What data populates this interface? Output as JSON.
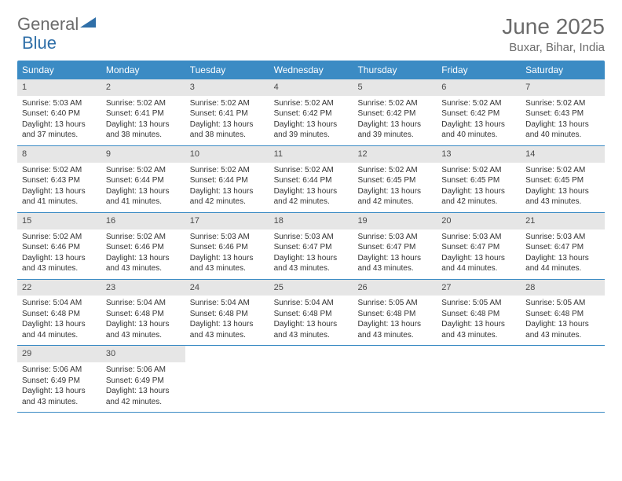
{
  "logo": {
    "text1": "General",
    "text2": "Blue"
  },
  "title": "June 2025",
  "location": "Buxar, Bihar, India",
  "colors": {
    "header_bg": "#3b8bc4",
    "header_text": "#ffffff",
    "daynum_bg": "#e6e6e6",
    "text": "#333333",
    "title_color": "#6b6b6b",
    "row_border": "#3b8bc4"
  },
  "weekdays": [
    "Sunday",
    "Monday",
    "Tuesday",
    "Wednesday",
    "Thursday",
    "Friday",
    "Saturday"
  ],
  "weeks": [
    [
      {
        "n": "1",
        "sr": "Sunrise: 5:03 AM",
        "ss": "Sunset: 6:40 PM",
        "d1": "Daylight: 13 hours",
        "d2": "and 37 minutes."
      },
      {
        "n": "2",
        "sr": "Sunrise: 5:02 AM",
        "ss": "Sunset: 6:41 PM",
        "d1": "Daylight: 13 hours",
        "d2": "and 38 minutes."
      },
      {
        "n": "3",
        "sr": "Sunrise: 5:02 AM",
        "ss": "Sunset: 6:41 PM",
        "d1": "Daylight: 13 hours",
        "d2": "and 38 minutes."
      },
      {
        "n": "4",
        "sr": "Sunrise: 5:02 AM",
        "ss": "Sunset: 6:42 PM",
        "d1": "Daylight: 13 hours",
        "d2": "and 39 minutes."
      },
      {
        "n": "5",
        "sr": "Sunrise: 5:02 AM",
        "ss": "Sunset: 6:42 PM",
        "d1": "Daylight: 13 hours",
        "d2": "and 39 minutes."
      },
      {
        "n": "6",
        "sr": "Sunrise: 5:02 AM",
        "ss": "Sunset: 6:42 PM",
        "d1": "Daylight: 13 hours",
        "d2": "and 40 minutes."
      },
      {
        "n": "7",
        "sr": "Sunrise: 5:02 AM",
        "ss": "Sunset: 6:43 PM",
        "d1": "Daylight: 13 hours",
        "d2": "and 40 minutes."
      }
    ],
    [
      {
        "n": "8",
        "sr": "Sunrise: 5:02 AM",
        "ss": "Sunset: 6:43 PM",
        "d1": "Daylight: 13 hours",
        "d2": "and 41 minutes."
      },
      {
        "n": "9",
        "sr": "Sunrise: 5:02 AM",
        "ss": "Sunset: 6:44 PM",
        "d1": "Daylight: 13 hours",
        "d2": "and 41 minutes."
      },
      {
        "n": "10",
        "sr": "Sunrise: 5:02 AM",
        "ss": "Sunset: 6:44 PM",
        "d1": "Daylight: 13 hours",
        "d2": "and 42 minutes."
      },
      {
        "n": "11",
        "sr": "Sunrise: 5:02 AM",
        "ss": "Sunset: 6:44 PM",
        "d1": "Daylight: 13 hours",
        "d2": "and 42 minutes."
      },
      {
        "n": "12",
        "sr": "Sunrise: 5:02 AM",
        "ss": "Sunset: 6:45 PM",
        "d1": "Daylight: 13 hours",
        "d2": "and 42 minutes."
      },
      {
        "n": "13",
        "sr": "Sunrise: 5:02 AM",
        "ss": "Sunset: 6:45 PM",
        "d1": "Daylight: 13 hours",
        "d2": "and 42 minutes."
      },
      {
        "n": "14",
        "sr": "Sunrise: 5:02 AM",
        "ss": "Sunset: 6:45 PM",
        "d1": "Daylight: 13 hours",
        "d2": "and 43 minutes."
      }
    ],
    [
      {
        "n": "15",
        "sr": "Sunrise: 5:02 AM",
        "ss": "Sunset: 6:46 PM",
        "d1": "Daylight: 13 hours",
        "d2": "and 43 minutes."
      },
      {
        "n": "16",
        "sr": "Sunrise: 5:02 AM",
        "ss": "Sunset: 6:46 PM",
        "d1": "Daylight: 13 hours",
        "d2": "and 43 minutes."
      },
      {
        "n": "17",
        "sr": "Sunrise: 5:03 AM",
        "ss": "Sunset: 6:46 PM",
        "d1": "Daylight: 13 hours",
        "d2": "and 43 minutes."
      },
      {
        "n": "18",
        "sr": "Sunrise: 5:03 AM",
        "ss": "Sunset: 6:47 PM",
        "d1": "Daylight: 13 hours",
        "d2": "and 43 minutes."
      },
      {
        "n": "19",
        "sr": "Sunrise: 5:03 AM",
        "ss": "Sunset: 6:47 PM",
        "d1": "Daylight: 13 hours",
        "d2": "and 43 minutes."
      },
      {
        "n": "20",
        "sr": "Sunrise: 5:03 AM",
        "ss": "Sunset: 6:47 PM",
        "d1": "Daylight: 13 hours",
        "d2": "and 44 minutes."
      },
      {
        "n": "21",
        "sr": "Sunrise: 5:03 AM",
        "ss": "Sunset: 6:47 PM",
        "d1": "Daylight: 13 hours",
        "d2": "and 44 minutes."
      }
    ],
    [
      {
        "n": "22",
        "sr": "Sunrise: 5:04 AM",
        "ss": "Sunset: 6:48 PM",
        "d1": "Daylight: 13 hours",
        "d2": "and 44 minutes."
      },
      {
        "n": "23",
        "sr": "Sunrise: 5:04 AM",
        "ss": "Sunset: 6:48 PM",
        "d1": "Daylight: 13 hours",
        "d2": "and 43 minutes."
      },
      {
        "n": "24",
        "sr": "Sunrise: 5:04 AM",
        "ss": "Sunset: 6:48 PM",
        "d1": "Daylight: 13 hours",
        "d2": "and 43 minutes."
      },
      {
        "n": "25",
        "sr": "Sunrise: 5:04 AM",
        "ss": "Sunset: 6:48 PM",
        "d1": "Daylight: 13 hours",
        "d2": "and 43 minutes."
      },
      {
        "n": "26",
        "sr": "Sunrise: 5:05 AM",
        "ss": "Sunset: 6:48 PM",
        "d1": "Daylight: 13 hours",
        "d2": "and 43 minutes."
      },
      {
        "n": "27",
        "sr": "Sunrise: 5:05 AM",
        "ss": "Sunset: 6:48 PM",
        "d1": "Daylight: 13 hours",
        "d2": "and 43 minutes."
      },
      {
        "n": "28",
        "sr": "Sunrise: 5:05 AM",
        "ss": "Sunset: 6:48 PM",
        "d1": "Daylight: 13 hours",
        "d2": "and 43 minutes."
      }
    ],
    [
      {
        "n": "29",
        "sr": "Sunrise: 5:06 AM",
        "ss": "Sunset: 6:49 PM",
        "d1": "Daylight: 13 hours",
        "d2": "and 43 minutes."
      },
      {
        "n": "30",
        "sr": "Sunrise: 5:06 AM",
        "ss": "Sunset: 6:49 PM",
        "d1": "Daylight: 13 hours",
        "d2": "and 42 minutes."
      },
      null,
      null,
      null,
      null,
      null
    ]
  ]
}
